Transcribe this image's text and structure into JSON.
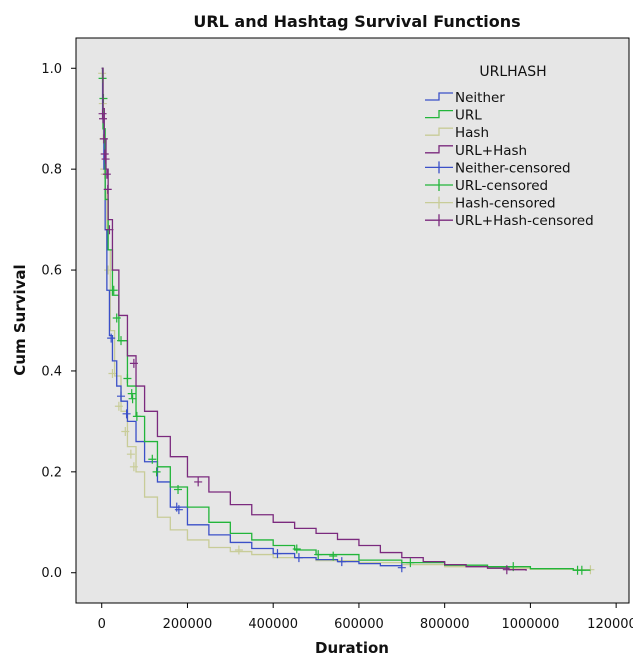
{
  "chart_data": {
    "type": "line",
    "title": "URL and Hashtag Survival Functions",
    "xlabel": "Duration",
    "ylabel": "Cum Survival",
    "xlim": [
      -60000,
      1230000
    ],
    "ylim": [
      -0.06,
      1.06
    ],
    "xticks": [
      0,
      200000,
      400000,
      600000,
      800000,
      1000000,
      1200000
    ],
    "xtick_labels": [
      "0",
      "200000",
      "400000",
      "600000",
      "800000",
      "1000000",
      "1200000"
    ],
    "yticks": [
      0.0,
      0.2,
      0.4,
      0.6,
      0.8,
      1.0
    ],
    "ytick_labels": [
      "0.0",
      "0.2",
      "0.4",
      "0.6",
      "0.8",
      "1.0"
    ],
    "grid": false,
    "background": "#e6e6e6",
    "legend": {
      "title": "URLHASH",
      "placement": "top-right",
      "entries": [
        "Neither",
        "URL",
        "Hash",
        "URL+Hash",
        "Neither-censored",
        "URL-censored",
        "Hash-censored",
        "URL+Hash-censored"
      ]
    },
    "series": [
      {
        "name": "Neither",
        "color": "#3b50c8",
        "x": [
          0,
          2000,
          5000,
          8000,
          12000,
          18000,
          25000,
          35000,
          45000,
          60000,
          80000,
          100000,
          130000,
          160000,
          200000,
          250000,
          300000,
          350000,
          400000,
          450000,
          500000,
          550000,
          600000,
          650000,
          700000
        ],
        "y": [
          1.0,
          0.9,
          0.8,
          0.68,
          0.56,
          0.47,
          0.42,
          0.37,
          0.34,
          0.3,
          0.26,
          0.22,
          0.18,
          0.13,
          0.095,
          0.075,
          0.06,
          0.048,
          0.038,
          0.03,
          0.026,
          0.022,
          0.018,
          0.014,
          0.01
        ],
        "censored": [
          {
            "x": 22000,
            "y": 0.465
          },
          {
            "x": 45000,
            "y": 0.35
          },
          {
            "x": 58000,
            "y": 0.315
          },
          {
            "x": 175000,
            "y": 0.13
          },
          {
            "x": 180000,
            "y": 0.125
          },
          {
            "x": 410000,
            "y": 0.038
          },
          {
            "x": 460000,
            "y": 0.03
          },
          {
            "x": 560000,
            "y": 0.022
          },
          {
            "x": 700000,
            "y": 0.01
          }
        ]
      },
      {
        "name": "URL",
        "color": "#22b53a",
        "x": [
          0,
          3000,
          8000,
          15000,
          25000,
          40000,
          60000,
          80000,
          100000,
          130000,
          160000,
          200000,
          250000,
          300000,
          350000,
          400000,
          450000,
          500000,
          600000,
          700000,
          800000,
          900000,
          1000000,
          1100000,
          1140000
        ],
        "y": [
          1.0,
          0.88,
          0.74,
          0.64,
          0.55,
          0.46,
          0.37,
          0.31,
          0.26,
          0.21,
          0.17,
          0.13,
          0.1,
          0.078,
          0.065,
          0.054,
          0.045,
          0.036,
          0.025,
          0.02,
          0.015,
          0.012,
          0.008,
          0.005,
          0.005
        ],
        "censored": [
          {
            "x": 2000,
            "y": 0.98
          },
          {
            "x": 4000,
            "y": 0.94
          },
          {
            "x": 28000,
            "y": 0.56
          },
          {
            "x": 35000,
            "y": 0.505
          },
          {
            "x": 45000,
            "y": 0.46
          },
          {
            "x": 60000,
            "y": 0.385
          },
          {
            "x": 70000,
            "y": 0.355
          },
          {
            "x": 72000,
            "y": 0.345
          },
          {
            "x": 82000,
            "y": 0.31
          },
          {
            "x": 118000,
            "y": 0.225
          },
          {
            "x": 128000,
            "y": 0.2
          },
          {
            "x": 178000,
            "y": 0.165
          },
          {
            "x": 455000,
            "y": 0.047
          },
          {
            "x": 505000,
            "y": 0.036
          },
          {
            "x": 540000,
            "y": 0.033
          },
          {
            "x": 720000,
            "y": 0.02
          },
          {
            "x": 960000,
            "y": 0.012
          },
          {
            "x": 1110000,
            "y": 0.005
          },
          {
            "x": 1120000,
            "y": 0.005
          }
        ]
      },
      {
        "name": "Hash",
        "color": "#c8cc98",
        "x": [
          0,
          2000,
          4000,
          8000,
          12000,
          20000,
          30000,
          45000,
          60000,
          80000,
          100000,
          130000,
          160000,
          200000,
          250000,
          300000,
          350000,
          400000,
          500000,
          600000,
          700000,
          800000,
          900000,
          1000000,
          1100000,
          1140000
        ],
        "y": [
          1.0,
          0.93,
          0.86,
          0.76,
          0.64,
          0.48,
          0.39,
          0.32,
          0.25,
          0.2,
          0.15,
          0.11,
          0.085,
          0.065,
          0.05,
          0.042,
          0.036,
          0.03,
          0.024,
          0.02,
          0.016,
          0.012,
          0.009,
          0.007,
          0.006,
          0.006
        ],
        "censored": [
          {
            "x": 1000,
            "y": 0.99
          },
          {
            "x": 2500,
            "y": 0.93
          },
          {
            "x": 4000,
            "y": 0.86
          },
          {
            "x": 6000,
            "y": 0.8
          },
          {
            "x": 7000,
            "y": 0.79
          },
          {
            "x": 15000,
            "y": 0.6
          },
          {
            "x": 25000,
            "y": 0.395
          },
          {
            "x": 40000,
            "y": 0.33
          },
          {
            "x": 55000,
            "y": 0.28
          },
          {
            "x": 68000,
            "y": 0.235
          },
          {
            "x": 75000,
            "y": 0.21
          },
          {
            "x": 320000,
            "y": 0.045
          },
          {
            "x": 1140000,
            "y": 0.006
          }
        ]
      },
      {
        "name": "URL+Hash",
        "color": "#7b2a7e",
        "x": [
          0,
          3000,
          6000,
          10000,
          15000,
          25000,
          40000,
          60000,
          80000,
          100000,
          130000,
          160000,
          200000,
          250000,
          300000,
          350000,
          400000,
          450000,
          500000,
          550000,
          600000,
          650000,
          700000,
          750000,
          800000,
          850000,
          900000,
          950000,
          990000
        ],
        "y": [
          1.0,
          0.92,
          0.86,
          0.8,
          0.7,
          0.6,
          0.51,
          0.43,
          0.37,
          0.32,
          0.27,
          0.23,
          0.19,
          0.16,
          0.135,
          0.115,
          0.1,
          0.088,
          0.078,
          0.066,
          0.054,
          0.04,
          0.03,
          0.022,
          0.016,
          0.012,
          0.009,
          0.006,
          0.004
        ],
        "censored": [
          {
            "x": 2000,
            "y": 0.91
          },
          {
            "x": 3000,
            "y": 0.9
          },
          {
            "x": 5000,
            "y": 0.86
          },
          {
            "x": 7000,
            "y": 0.83
          },
          {
            "x": 9000,
            "y": 0.82
          },
          {
            "x": 12000,
            "y": 0.79
          },
          {
            "x": 14000,
            "y": 0.76
          },
          {
            "x": 18000,
            "y": 0.68
          },
          {
            "x": 75000,
            "y": 0.415
          },
          {
            "x": 225000,
            "y": 0.18
          },
          {
            "x": 945000,
            "y": 0.006
          }
        ]
      }
    ]
  }
}
